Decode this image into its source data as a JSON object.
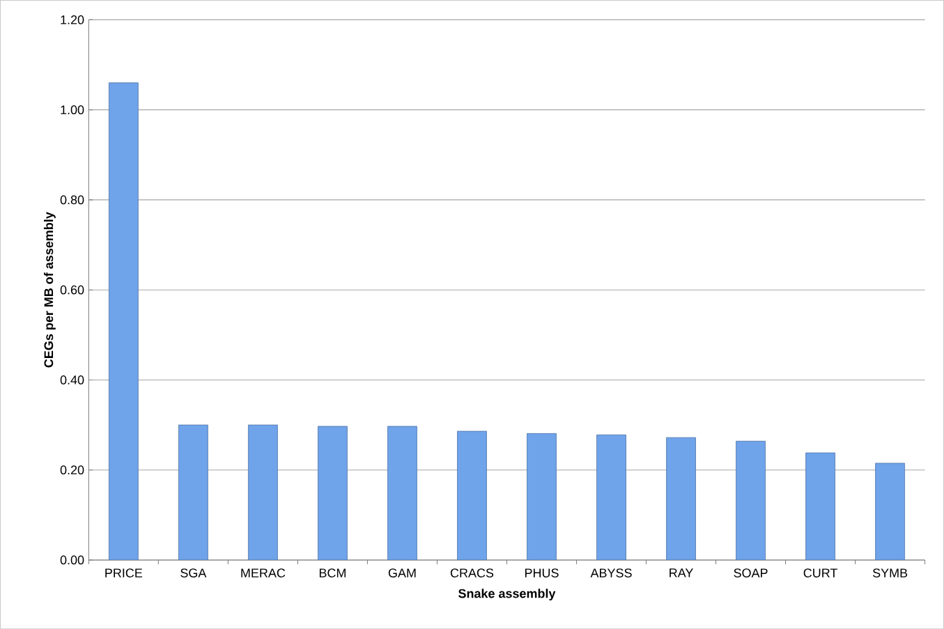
{
  "chart_data": {
    "type": "bar",
    "xlabel": "Snake assembly",
    "ylabel": "CEGs per MB of assembly",
    "categories": [
      "PRICE",
      "SGA",
      "MERAC",
      "BCM",
      "GAM",
      "CRACS",
      "PHUS",
      "ABYSS",
      "RAY",
      "SOAP",
      "CURT",
      "SYMB"
    ],
    "values": [
      1.06,
      0.3,
      0.3,
      0.297,
      0.297,
      0.286,
      0.281,
      0.278,
      0.272,
      0.264,
      0.238,
      0.215
    ],
    "color": "#6fa3ea",
    "ylim": [
      0,
      1.2
    ],
    "yticks": [
      {
        "value": 0,
        "label": "0.00"
      },
      {
        "value": 0.2,
        "label": "0.20"
      },
      {
        "value": 0.4,
        "label": "0.40"
      },
      {
        "value": 0.6,
        "label": "0.60"
      },
      {
        "value": 0.8,
        "label": "0.80"
      },
      {
        "value": 1.0,
        "label": "1.00"
      },
      {
        "value": 1.2,
        "label": "1.20"
      }
    ],
    "grid": "y"
  }
}
